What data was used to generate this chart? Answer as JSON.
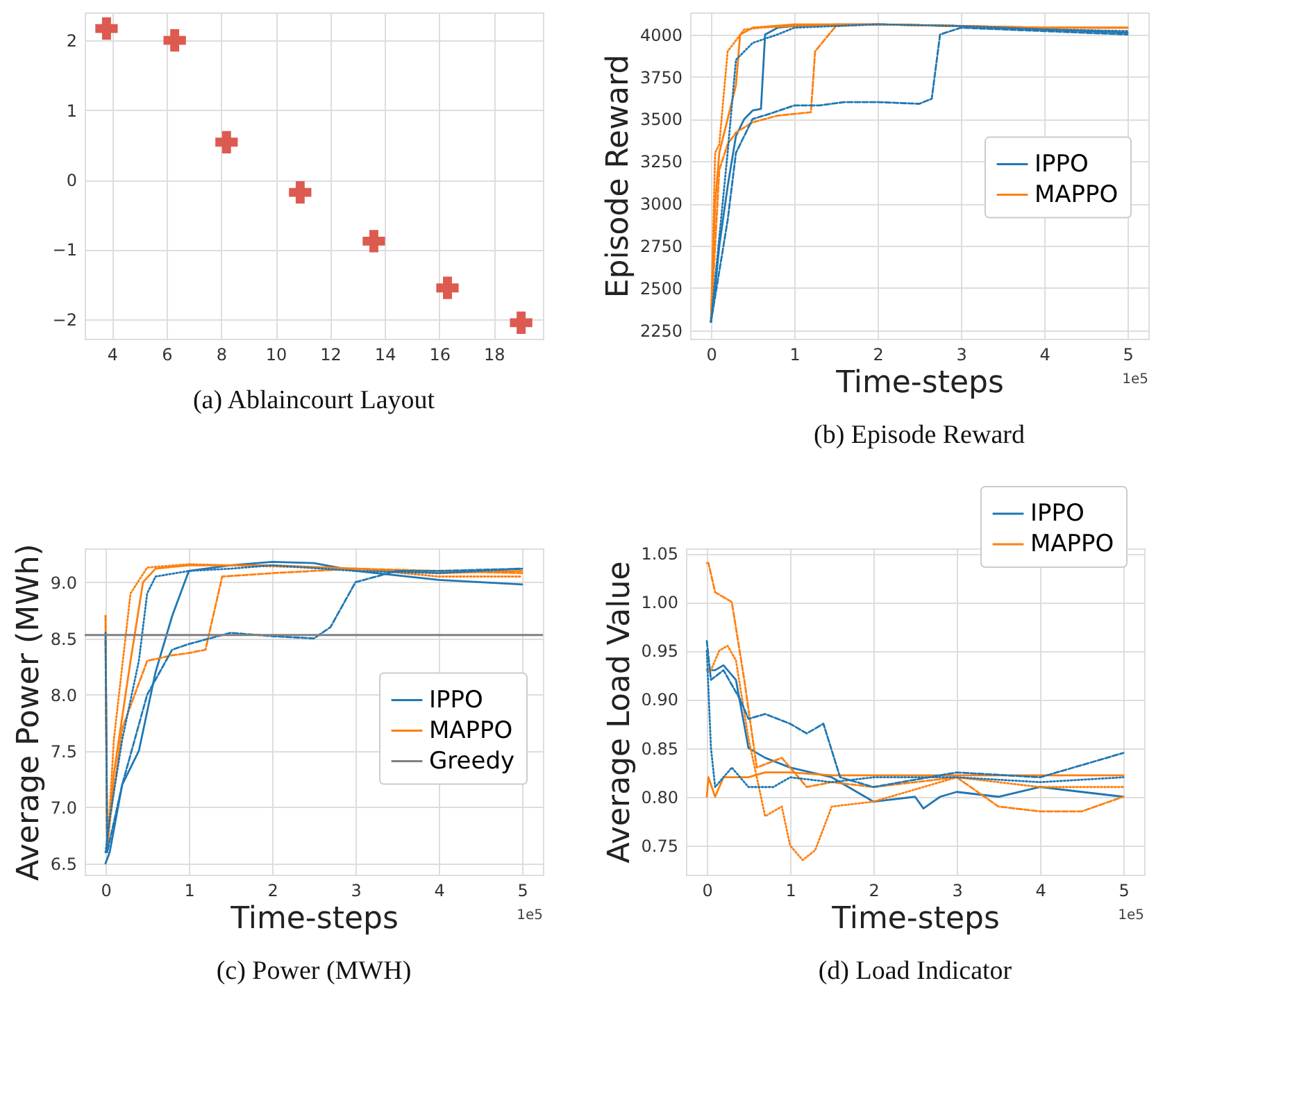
{
  "chart_data": [
    {
      "type": "scatter",
      "title": "(a) Ablaincourt Layout",
      "marker": "cross",
      "grid": true,
      "legend": false,
      "x": [
        3.8,
        6.3,
        8.2,
        10.9,
        13.6,
        16.3,
        19.0
      ],
      "series": [
        {
          "color": "#dd5a50",
          "values": [
            2.17,
            2.0,
            0.54,
            -0.18,
            -0.88,
            -1.55,
            -2.05
          ]
        }
      ],
      "xlim": [
        3.0,
        19.8
      ],
      "ylim": [
        -2.28,
        2.4
      ],
      "xticks": [
        4,
        6,
        8,
        10,
        12,
        14,
        16,
        18
      ],
      "yticks": [
        {
          "value": -2,
          "label": "−2"
        },
        {
          "value": -1,
          "label": "−1"
        },
        0,
        1,
        2
      ]
    },
    {
      "type": "line",
      "title": "(b) Episode Reward",
      "xlabel": "Time-steps",
      "ylabel": "Episode Reward",
      "annotations": [
        "1e5"
      ],
      "grid": true,
      "legend": "right",
      "series": [
        {
          "name": "IPPO",
          "color": "#1f77b4",
          "line_style": "solid",
          "x": [
            0,
            0.05,
            0.1,
            0.2,
            0.3,
            0.4,
            0.5,
            0.6,
            0.65,
            0.8,
            1,
            1.5,
            2,
            3,
            4,
            5
          ],
          "values": [
            2300,
            2500,
            2750,
            3100,
            3400,
            3500,
            3550,
            3560,
            4000,
            4040,
            4050,
            4060,
            4060,
            4050,
            4030,
            4010
          ]
        },
        {
          "color": "#1f77b4",
          "line_style": "dashed",
          "x": [
            0,
            0.1,
            0.2,
            0.3,
            0.5,
            0.7,
            1,
            1.3,
            1.6,
            2,
            2.5,
            2.65,
            2.75,
            3,
            4,
            5
          ],
          "values": [
            2300,
            2600,
            2900,
            3300,
            3500,
            3530,
            3580,
            3580,
            3600,
            3600,
            3590,
            3620,
            4000,
            4040,
            4020,
            4000
          ]
        },
        {
          "color": "#1f77b4",
          "line_style": "dotted",
          "x": [
            0,
            0.1,
            0.2,
            0.3,
            0.5,
            0.8,
            1,
            1.5,
            2,
            3,
            4,
            5
          ],
          "values": [
            2300,
            2800,
            3300,
            3850,
            3950,
            4000,
            4040,
            4050,
            4060,
            4050,
            4030,
            4020
          ]
        },
        {
          "name": "MAPPO",
          "color": "#ff7f0e",
          "line_style": "solid",
          "x": [
            0,
            0.05,
            0.1,
            0.2,
            0.3,
            0.35,
            0.5,
            1,
            2,
            3,
            4,
            5
          ],
          "values": [
            2300,
            3000,
            3300,
            3500,
            3700,
            4000,
            4040,
            4060,
            4060,
            4050,
            4040,
            4040
          ]
        },
        {
          "color": "#ff7f0e",
          "line_style": "dashed",
          "x": [
            0,
            0.1,
            0.2,
            0.3,
            0.5,
            0.8,
            1,
            1.2,
            1.25,
            1.5,
            2,
            3,
            4,
            5
          ],
          "values": [
            2300,
            3200,
            3350,
            3420,
            3480,
            3520,
            3530,
            3540,
            3900,
            4050,
            4060,
            4050,
            4040,
            4040
          ]
        },
        {
          "color": "#ff7f0e",
          "line_style": "dotted",
          "x": [
            0,
            0.05,
            0.1,
            0.2,
            0.4,
            0.6,
            1,
            2,
            3,
            4,
            5
          ],
          "values": [
            2300,
            3300,
            3350,
            3900,
            4030,
            4040,
            4050,
            4060,
            4050,
            4040,
            4040
          ]
        }
      ],
      "xlim": [
        -0.25,
        5.25
      ],
      "ylim": [
        2200,
        4130
      ],
      "xticks": [
        0,
        1,
        2,
        3,
        4,
        5
      ],
      "yticks": [
        2250,
        2500,
        2750,
        3000,
        3250,
        3500,
        3750,
        4000
      ]
    },
    {
      "type": "line",
      "title": "(c) Power (MWH)",
      "xlabel": "Time-steps",
      "ylabel": "Average Power (MWh)",
      "annotations": [
        "1e5"
      ],
      "grid": true,
      "legend": "right",
      "series": [
        {
          "name": "IPPO",
          "color": "#1f77b4",
          "line_style": "solid",
          "x": [
            0,
            0.05,
            0.2,
            0.4,
            0.6,
            0.8,
            1,
            1.5,
            2,
            2.5,
            3,
            4,
            5
          ],
          "values": [
            6.5,
            6.6,
            7.2,
            7.5,
            8.2,
            8.7,
            9.1,
            9.15,
            9.18,
            9.17,
            9.1,
            9.02,
            8.98
          ]
        },
        {
          "color": "#1f77b4",
          "line_style": "dashed",
          "x": [
            0,
            0.02,
            0.2,
            0.5,
            0.8,
            1,
            1.5,
            2,
            2.5,
            2.7,
            3,
            3.5,
            4,
            5
          ],
          "values": [
            8.55,
            6.6,
            7.2,
            8.0,
            8.4,
            8.45,
            8.55,
            8.52,
            8.5,
            8.6,
            9.0,
            9.1,
            9.1,
            9.12
          ]
        },
        {
          "color": "#1f77b4",
          "line_style": "dotted",
          "x": [
            0,
            0.05,
            0.2,
            0.4,
            0.5,
            0.6,
            1,
            1.5,
            2,
            3,
            4,
            5
          ],
          "values": [
            6.6,
            6.9,
            7.6,
            8.3,
            8.9,
            9.05,
            9.1,
            9.12,
            9.15,
            9.1,
            9.08,
            9.12
          ]
        },
        {
          "name": "MAPPO",
          "color": "#ff7f0e",
          "line_style": "solid",
          "x": [
            0,
            0.02,
            0.1,
            0.3,
            0.45,
            0.6,
            1,
            2,
            3,
            4,
            5
          ],
          "values": [
            8.5,
            6.6,
            7.3,
            8.3,
            9.0,
            9.12,
            9.15,
            9.15,
            9.12,
            9.08,
            9.1
          ]
        },
        {
          "color": "#ff7f0e",
          "line_style": "dashed",
          "x": [
            0,
            0.02,
            0.2,
            0.5,
            0.8,
            1,
            1.2,
            1.4,
            2,
            3,
            4,
            5
          ],
          "values": [
            8.7,
            6.7,
            7.7,
            8.3,
            8.35,
            8.37,
            8.4,
            9.05,
            9.08,
            9.12,
            9.1,
            9.08
          ]
        },
        {
          "color": "#ff7f0e",
          "line_style": "dotted",
          "x": [
            0,
            0.02,
            0.1,
            0.3,
            0.5,
            1,
            2,
            3,
            4,
            5
          ],
          "values": [
            8.7,
            6.6,
            7.6,
            8.9,
            9.13,
            9.16,
            9.14,
            9.12,
            9.05,
            9.05
          ]
        }
      ],
      "ref_lines": [
        {
          "axis": "y",
          "value": 8.53,
          "label": "Greedy",
          "color": "#808080"
        }
      ],
      "xlim": [
        -0.25,
        5.25
      ],
      "ylim": [
        6.4,
        9.3
      ],
      "xticks": [
        0,
        1,
        2,
        3,
        4,
        5
      ],
      "yticks": [
        6.5,
        {
          "value": 7,
          "label": "7.0"
        },
        7.5,
        {
          "value": 8,
          "label": "8.0"
        },
        8.5,
        {
          "value": 9,
          "label": "9.0"
        }
      ]
    },
    {
      "type": "line",
      "title": "(d) Load Indicator",
      "xlabel": "Time-steps",
      "ylabel": "Average Load Value",
      "annotations": [
        "1e5"
      ],
      "grid": true,
      "legend": "top right",
      "series": [
        {
          "name": "IPPO",
          "color": "#1f77b4",
          "line_style": "solid",
          "x": [
            0,
            0.1,
            0.2,
            0.35,
            0.5,
            0.7,
            1,
            1.5,
            2,
            2.5,
            2.6,
            2.8,
            3,
            3.5,
            4,
            4.5,
            5
          ],
          "values": [
            0.93,
            0.93,
            0.935,
            0.92,
            0.85,
            0.84,
            0.83,
            0.82,
            0.795,
            0.8,
            0.788,
            0.8,
            0.805,
            0.8,
            0.81,
            0.805,
            0.8
          ]
        },
        {
          "color": "#1f77b4",
          "line_style": "dashed",
          "x": [
            0,
            0.05,
            0.2,
            0.4,
            0.5,
            0.7,
            1,
            1.2,
            1.4,
            1.6,
            2,
            3,
            4,
            5
          ],
          "values": [
            0.96,
            0.92,
            0.93,
            0.9,
            0.88,
            0.885,
            0.875,
            0.865,
            0.875,
            0.82,
            0.81,
            0.825,
            0.82,
            0.845
          ]
        },
        {
          "color": "#1f77b4",
          "line_style": "dotted",
          "x": [
            0,
            0.05,
            0.1,
            0.3,
            0.5,
            0.8,
            1,
            1.5,
            2,
            3,
            4,
            5
          ],
          "values": [
            0.95,
            0.85,
            0.81,
            0.83,
            0.81,
            0.81,
            0.82,
            0.815,
            0.82,
            0.82,
            0.815,
            0.82
          ]
        },
        {
          "name": "MAPPO",
          "color": "#ff7f0e",
          "line_style": "solid",
          "x": [
            0,
            0.02,
            0.1,
            0.2,
            0.5,
            0.7,
            1,
            1.5,
            2,
            5
          ],
          "values": [
            0.8,
            0.82,
            0.8,
            0.82,
            0.82,
            0.825,
            0.825,
            0.822,
            0.822,
            0.822
          ]
        },
        {
          "color": "#ff7f0e",
          "line_style": "dashed",
          "x": [
            0,
            0.02,
            0.1,
            0.3,
            0.45,
            0.6,
            0.9,
            1.2,
            1.5,
            2,
            3,
            3.5,
            4,
            4.5,
            5
          ],
          "values": [
            1.04,
            1.04,
            1.01,
            1.0,
            0.92,
            0.83,
            0.84,
            0.81,
            0.815,
            0.81,
            0.82,
            0.79,
            0.785,
            0.785,
            0.8
          ]
        },
        {
          "color": "#ff7f0e",
          "line_style": "dotted",
          "x": [
            0,
            0.05,
            0.15,
            0.25,
            0.35,
            0.5,
            0.7,
            0.9,
            1,
            1.15,
            1.3,
            1.5,
            2,
            3,
            4,
            5
          ],
          "values": [
            0.93,
            0.93,
            0.95,
            0.955,
            0.94,
            0.86,
            0.78,
            0.79,
            0.75,
            0.735,
            0.745,
            0.79,
            0.795,
            0.82,
            0.81,
            0.81
          ]
        }
      ],
      "xlim": [
        -0.25,
        5.25
      ],
      "ylim": [
        0.72,
        1.055
      ],
      "xticks": [
        0,
        1,
        2,
        3,
        4,
        5
      ],
      "yticks": [
        0.75,
        {
          "value": 0.8,
          "label": "0.80"
        },
        0.85,
        {
          "value": 0.9,
          "label": "0.90"
        },
        0.95,
        {
          "value": 1,
          "label": "1.00"
        },
        1.05
      ]
    }
  ]
}
